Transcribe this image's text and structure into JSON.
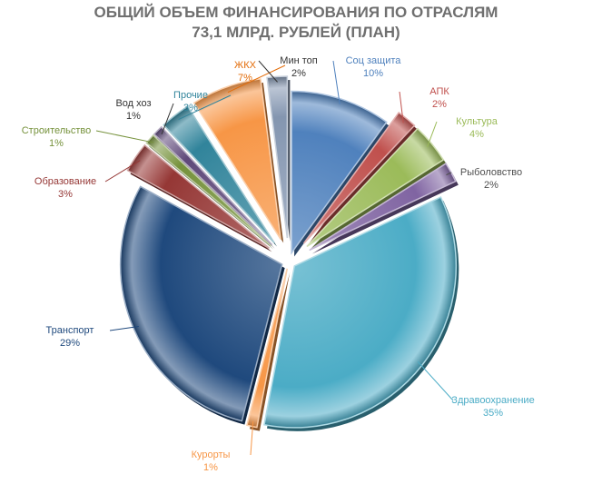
{
  "chart_data": {
    "type": "pie",
    "title": "ОБЩИЙ ОБЪЕМ ФИНАНСИРОВАНИЯ ПО ОТРАСЛЯМ",
    "subtitle": "73,1 МЛРД. РУБЛЕЙ (ПЛАН)",
    "slices": [
      {
        "name": "Соц защита",
        "value": 10,
        "label": "10%",
        "color": "#4f81bd",
        "label_color": "#4f81bd"
      },
      {
        "name": "АПК",
        "value": 2,
        "label": "2%",
        "color": "#c0504d",
        "label_color": "#c0504d"
      },
      {
        "name": "Культура",
        "value": 4,
        "label": "4%",
        "color": "#9bbb59",
        "label_color": "#9bbb59"
      },
      {
        "name": "Рыболовство",
        "value": 2,
        "label": "2%",
        "color": "#8064a2",
        "label_color": "#4f4f4f"
      },
      {
        "name": "Здравоохранение",
        "value": 35,
        "label": "35%",
        "color": "#4bacc6",
        "label_color": "#4bacc6"
      },
      {
        "name": "Курорты",
        "value": 1,
        "label": "1%",
        "color": "#f79646",
        "label_color": "#f79646"
      },
      {
        "name": "Транспорт",
        "value": 29,
        "label": "29%",
        "color": "#1f497d",
        "label_color": "#1f497d"
      },
      {
        "name": "Образование",
        "value": 3,
        "label": "3%",
        "color": "#953735",
        "label_color": "#953735"
      },
      {
        "name": "Строительство",
        "value": 1,
        "label": "1%",
        "color": "#76923c",
        "label_color": "#76923c"
      },
      {
        "name": "Вод хоз",
        "value": 1,
        "label": "1%",
        "color": "#5f497a",
        "label_color": "#333333"
      },
      {
        "name": "Прочие",
        "value": 3,
        "label": "3%",
        "color": "#31849b",
        "label_color": "#31849b"
      },
      {
        "name": "ЖКХ",
        "value": 7,
        "label": "7%",
        "color": "#f79646",
        "label_color": "#e36c09"
      },
      {
        "name": "Мин топ",
        "value": 2,
        "label": "2%",
        "color": "#8496b0",
        "label_color": "#333333"
      }
    ],
    "legend": "none",
    "data_labels": "outside"
  }
}
